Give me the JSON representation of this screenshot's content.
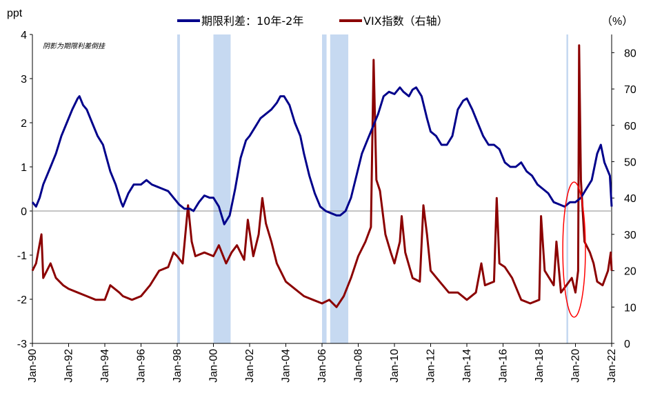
{
  "chart_data": {
    "type": "line",
    "legend": {
      "placement": "top-center",
      "series1_label": "期限利差：10年-2年",
      "series2_label": "VIX指数（右轴）"
    },
    "left_axis": {
      "unit": "ppt",
      "ylim": [
        -3,
        4
      ],
      "ticks": [
        "4",
        "3",
        "2",
        "1",
        "0",
        "-1",
        "-2",
        "-3"
      ],
      "color": "#cc0000"
    },
    "right_axis": {
      "unit": "（%）",
      "ylim": [
        0,
        85
      ],
      "ticks": [
        "80",
        "70",
        "60",
        "50",
        "40",
        "30",
        "20",
        "10",
        "0"
      ]
    },
    "x_ticks": [
      "Jan-90",
      "Jan-92",
      "Jan-94",
      "Jan-96",
      "Jan-98",
      "Jan-00",
      "Jan-02",
      "Jan-04",
      "Jan-06",
      "Jan-08",
      "Jan-10",
      "Jan-12",
      "Jan-14",
      "Jan-16",
      "Jan-18",
      "Jan-20",
      "Jan-22"
    ],
    "xlim": [
      1990,
      2022
    ],
    "note": "阴影为期限利差倒挂",
    "shaded_periods": [
      [
        1998.0,
        1998.15
      ],
      [
        2000.0,
        2000.95
      ],
      [
        2006.0,
        2006.25
      ],
      [
        2006.45,
        2007.45
      ],
      [
        2019.5,
        2019.6
      ]
    ],
    "annotation": {
      "type": "ellipse",
      "around": [
        2019.3,
        2020.55
      ],
      "color": "#ff0000"
    },
    "colors": {
      "spread": "#00008b",
      "vix": "#8b0000",
      "shade": "#c6d9f1",
      "zero_line": "#888888"
    },
    "series": [
      {
        "name": "期限利差：10年-2年",
        "axis": "left",
        "x": [
          1990.0,
          1990.2,
          1990.4,
          1990.6,
          1990.8,
          1991.0,
          1991.3,
          1991.6,
          1991.9,
          1992.2,
          1992.5,
          1992.6,
          1992.8,
          1993.0,
          1993.3,
          1993.6,
          1993.9,
          1994.1,
          1994.3,
          1994.6,
          1994.9,
          1995.0,
          1995.3,
          1995.6,
          1996.0,
          1996.3,
          1996.6,
          1996.9,
          1997.2,
          1997.5,
          1997.8,
          1998.1,
          1998.4,
          1998.7,
          1998.9,
          1999.2,
          1999.5,
          1999.8,
          2000.0,
          2000.3,
          2000.6,
          2000.9,
          2001.2,
          2001.5,
          2001.8,
          2002.0,
          2002.3,
          2002.6,
          2002.9,
          2003.2,
          2003.5,
          2003.7,
          2003.9,
          2004.2,
          2004.5,
          2004.8,
          2005.0,
          2005.3,
          2005.6,
          2005.9,
          2006.2,
          2006.5,
          2006.8,
          2007.0,
          2007.3,
          2007.6,
          2007.9,
          2008.2,
          2008.5,
          2008.8,
          2009.1,
          2009.4,
          2009.7,
          2010.0,
          2010.3,
          2010.5,
          2010.8,
          2011.0,
          2011.2,
          2011.5,
          2011.8,
          2012.0,
          2012.3,
          2012.6,
          2012.9,
          2013.2,
          2013.5,
          2013.8,
          2014.0,
          2014.3,
          2014.6,
          2014.9,
          2015.2,
          2015.5,
          2015.8,
          2016.1,
          2016.4,
          2016.7,
          2017.0,
          2017.3,
          2017.6,
          2017.9,
          2018.2,
          2018.5,
          2018.8,
          2019.1,
          2019.4,
          2019.7,
          2020.0,
          2020.3,
          2020.6,
          2020.9,
          2021.2,
          2021.4,
          2021.6,
          2021.9,
          2022.0
        ],
        "y": [
          0.2,
          0.1,
          0.3,
          0.6,
          0.8,
          1.0,
          1.3,
          1.7,
          2.0,
          2.3,
          2.55,
          2.6,
          2.4,
          2.3,
          2.0,
          1.7,
          1.5,
          1.2,
          0.9,
          0.6,
          0.2,
          0.1,
          0.4,
          0.6,
          0.6,
          0.7,
          0.6,
          0.55,
          0.5,
          0.45,
          0.3,
          0.15,
          0.05,
          0.05,
          0.0,
          0.2,
          0.35,
          0.3,
          0.3,
          0.1,
          -0.3,
          -0.1,
          0.5,
          1.2,
          1.6,
          1.7,
          1.9,
          2.1,
          2.2,
          2.3,
          2.45,
          2.6,
          2.6,
          2.4,
          2.0,
          1.7,
          1.3,
          0.8,
          0.4,
          0.1,
          0.0,
          -0.05,
          -0.1,
          -0.1,
          0.0,
          0.3,
          0.8,
          1.3,
          1.6,
          1.9,
          2.2,
          2.6,
          2.7,
          2.65,
          2.8,
          2.7,
          2.6,
          2.75,
          2.8,
          2.6,
          2.1,
          1.8,
          1.7,
          1.5,
          1.5,
          1.7,
          2.3,
          2.5,
          2.55,
          2.3,
          2.0,
          1.7,
          1.5,
          1.5,
          1.4,
          1.1,
          1.0,
          1.0,
          1.1,
          0.9,
          0.8,
          0.6,
          0.5,
          0.4,
          0.2,
          0.15,
          0.1,
          0.2,
          0.2,
          0.3,
          0.5,
          0.7,
          1.3,
          1.5,
          1.1,
          0.8,
          0.1
        ]
      },
      {
        "name": "VIX指数（右轴）",
        "axis": "right",
        "x": [
          1990.0,
          1990.2,
          1990.5,
          1990.6,
          1990.8,
          1991.0,
          1991.3,
          1991.7,
          1992.0,
          1992.5,
          1993.0,
          1993.5,
          1994.0,
          1994.3,
          1994.8,
          1995.0,
          1995.5,
          1996.0,
          1996.5,
          1997.0,
          1997.5,
          1997.8,
          1998.0,
          1998.3,
          1998.6,
          1998.8,
          1999.0,
          1999.5,
          2000.0,
          2000.3,
          2000.7,
          2001.0,
          2001.3,
          2001.7,
          2001.9,
          2002.2,
          2002.5,
          2002.7,
          2002.9,
          2003.2,
          2003.5,
          2004.0,
          2004.5,
          2005.0,
          2005.5,
          2006.0,
          2006.4,
          2006.8,
          2007.2,
          2007.6,
          2008.0,
          2008.4,
          2008.7,
          2008.85,
          2009.0,
          2009.2,
          2009.5,
          2009.8,
          2010.0,
          2010.3,
          2010.4,
          2010.6,
          2011.0,
          2011.4,
          2011.6,
          2011.8,
          2012.0,
          2012.5,
          2013.0,
          2013.5,
          2014.0,
          2014.5,
          2014.8,
          2015.0,
          2015.5,
          2015.65,
          2015.8,
          2016.1,
          2016.5,
          2017.0,
          2017.5,
          2018.0,
          2018.1,
          2018.3,
          2018.8,
          2018.95,
          2019.2,
          2019.5,
          2019.8,
          2020.0,
          2020.15,
          2020.2,
          2020.3,
          2020.5,
          2020.8,
          2021.0,
          2021.2,
          2021.5,
          2021.8,
          2021.95,
          2022.0
        ],
        "y": [
          20,
          22,
          30,
          18,
          20,
          22,
          18,
          16,
          15,
          14,
          13,
          12,
          12,
          16,
          14,
          13,
          12,
          13,
          16,
          20,
          21,
          25,
          24,
          22,
          38,
          28,
          24,
          25,
          24,
          27,
          22,
          25,
          27,
          23,
          34,
          24,
          30,
          40,
          33,
          28,
          22,
          17,
          15,
          13,
          12,
          11,
          12,
          10,
          13,
          18,
          24,
          28,
          32,
          78,
          45,
          42,
          30,
          25,
          22,
          28,
          35,
          25,
          18,
          17,
          38,
          30,
          20,
          17,
          14,
          14,
          12,
          14,
          22,
          16,
          17,
          40,
          22,
          21,
          18,
          12,
          11,
          12,
          35,
          20,
          16,
          28,
          14,
          16,
          18,
          14,
          20,
          82,
          45,
          28,
          25,
          22,
          17,
          16,
          20,
          25,
          20
        ]
      }
    ]
  }
}
